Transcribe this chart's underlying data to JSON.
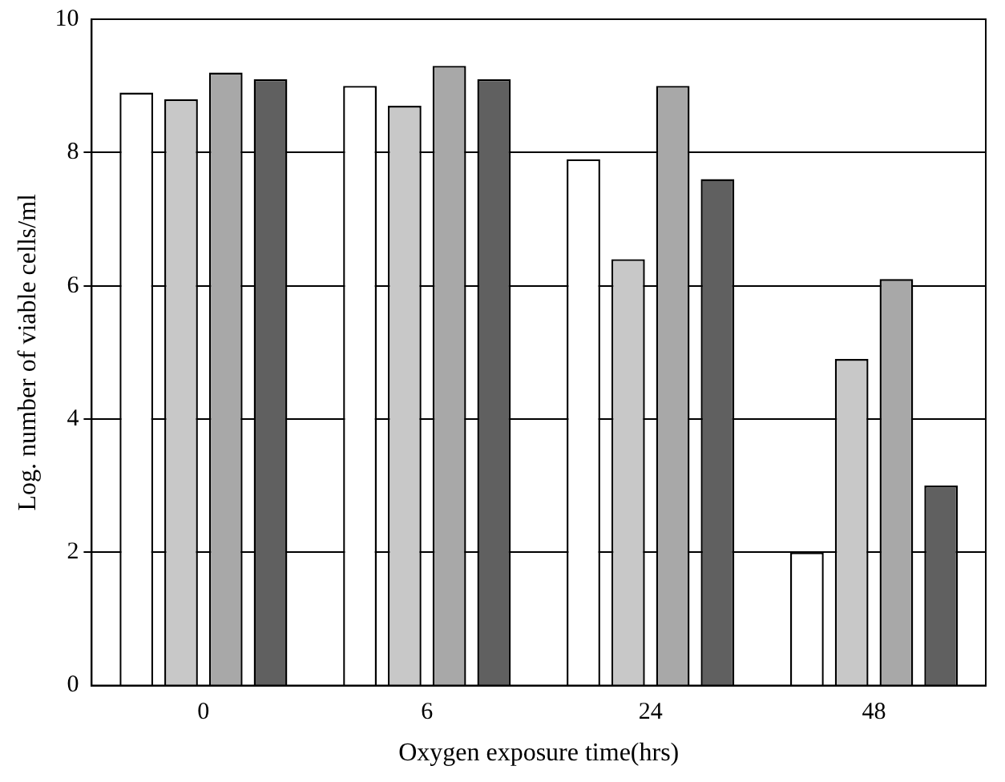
{
  "chart_data": {
    "type": "bar",
    "xlabel": "Oxygen exposure time(hrs)",
    "ylabel": "Log. number of viable cells/ml",
    "categories": [
      "0",
      "6",
      "24",
      "48"
    ],
    "series": [
      {
        "color": "#ffffff",
        "values": [
          8.9,
          9.0,
          7.9,
          2.0
        ]
      },
      {
        "color": "#c8c8c8",
        "values": [
          8.8,
          8.7,
          6.4,
          4.9
        ]
      },
      {
        "color": "#a8a8a8",
        "values": [
          9.2,
          9.3,
          9.0,
          6.1
        ]
      },
      {
        "color": "#606060",
        "values": [
          9.1,
          9.1,
          7.6,
          3.0
        ]
      }
    ],
    "ylim": [
      0,
      10
    ],
    "yticks": [
      0,
      2,
      4,
      6,
      8,
      10
    ],
    "grid": "y",
    "legend": false
  }
}
